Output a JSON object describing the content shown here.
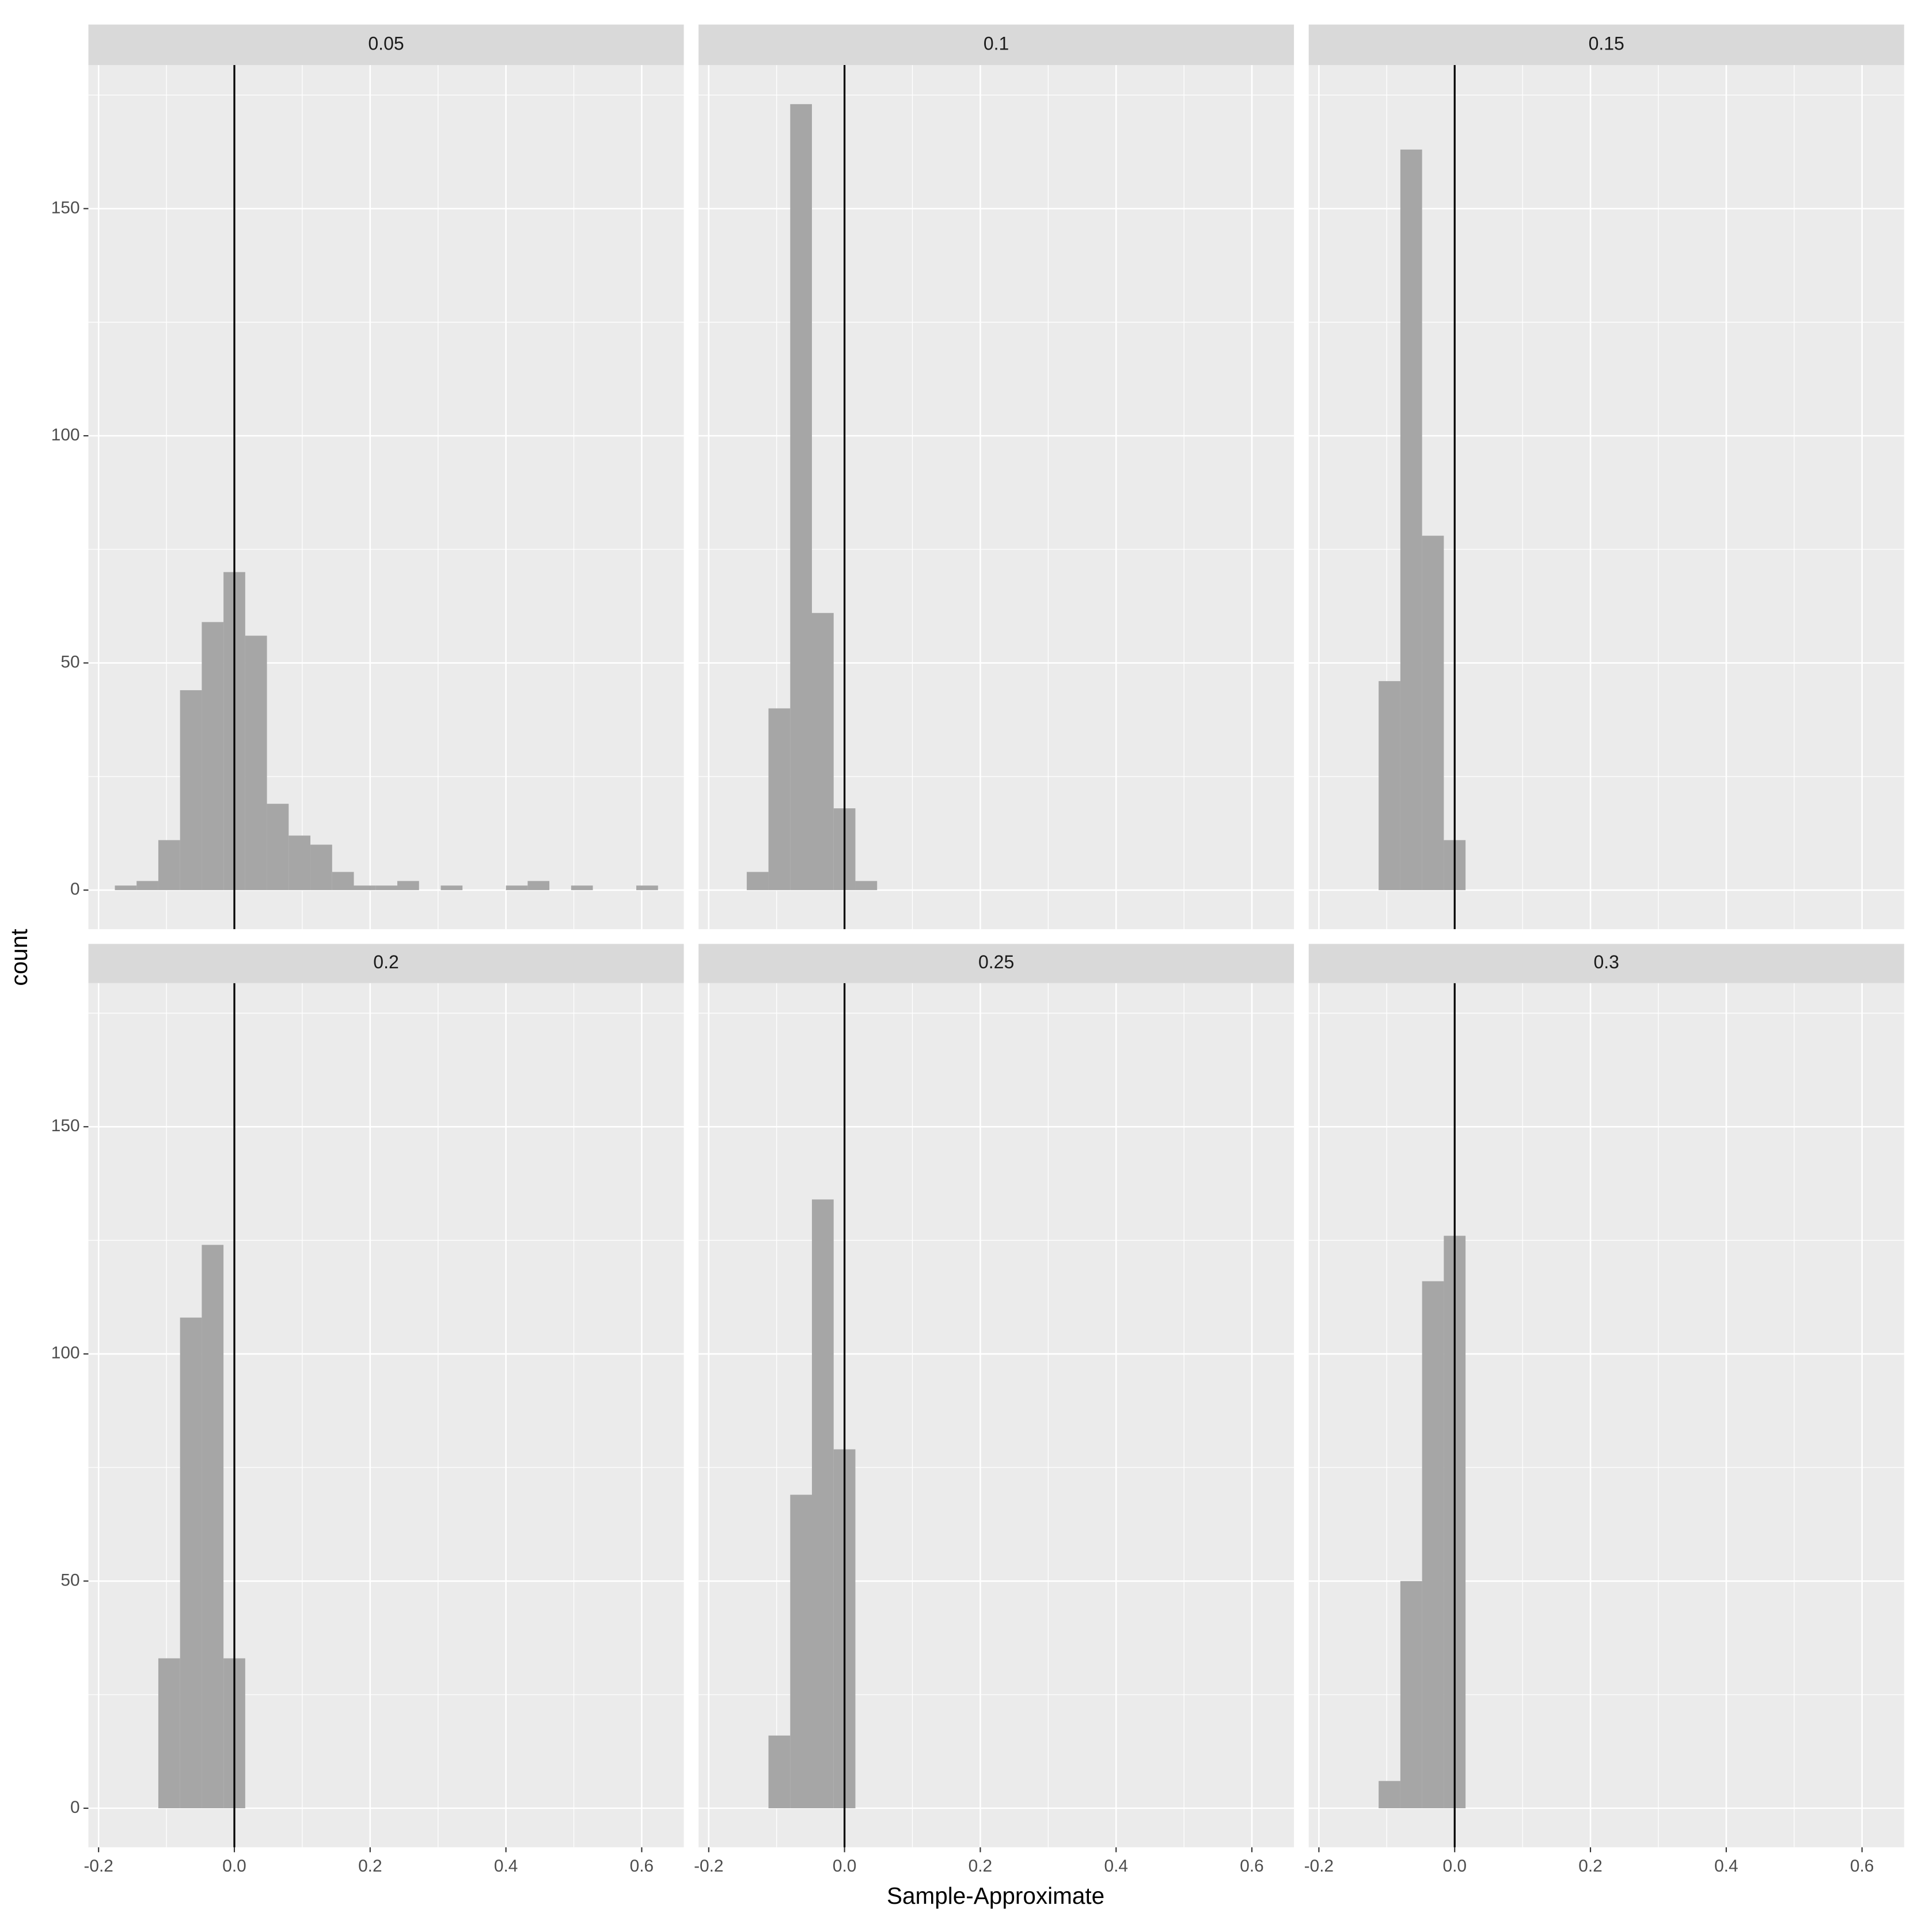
{
  "chart_data": {
    "type": "histogram",
    "xlabel": "Sample-Approximate",
    "ylabel": "count",
    "color": "#a6a6a6",
    "reference_line": 0,
    "xlim": [
      -0.215,
      0.662
    ],
    "xticks": [
      -0.2,
      {
        "value": 0,
        "label": "0.0"
      },
      0.2,
      0.4,
      0.6
    ],
    "minor_xticks": [
      -0.1,
      0.1,
      0.3,
      0.5
    ],
    "ylim": [
      -8.6,
      181.6
    ],
    "yticks": [
      0,
      50,
      100,
      150
    ],
    "minor_yticks": [
      25,
      75,
      125,
      175
    ],
    "facets": [
      {
        "title": "0.05",
        "bins": [
          -0.176,
          -0.144,
          -0.112,
          -0.08,
          -0.048,
          -0.016,
          0.016,
          0.048,
          0.08,
          0.112,
          0.144,
          0.176,
          0.208,
          0.24,
          0.272,
          0.304,
          0.336,
          0.368,
          0.4,
          0.432,
          0.464,
          0.496,
          0.528,
          0.56,
          0.592,
          0.624
        ],
        "counts": [
          1,
          2,
          11,
          44,
          59,
          70,
          56,
          19,
          12,
          10,
          4,
          1,
          1,
          2,
          0,
          1,
          0,
          0,
          1,
          2,
          0,
          1,
          0,
          0,
          1
        ]
      },
      {
        "title": "0.1",
        "bins": [
          -0.144,
          -0.112,
          -0.08,
          -0.048,
          -0.016,
          0.016,
          0.048
        ],
        "counts": [
          4,
          40,
          173,
          61,
          18,
          2
        ]
      },
      {
        "title": "0.15",
        "bins": [
          -0.112,
          -0.08,
          -0.048,
          -0.016,
          0.016
        ],
        "counts": [
          46,
          163,
          78,
          11
        ]
      },
      {
        "title": "0.2",
        "bins": [
          -0.112,
          -0.08,
          -0.048,
          -0.016,
          0.016
        ],
        "counts": [
          33,
          108,
          124,
          33
        ]
      },
      {
        "title": "0.25",
        "bins": [
          -0.112,
          -0.08,
          -0.048,
          -0.016,
          0.016
        ],
        "counts": [
          16,
          69,
          134,
          79
        ]
      },
      {
        "title": "0.3",
        "bins": [
          -0.112,
          -0.08,
          -0.048,
          -0.016,
          0.016
        ],
        "counts": [
          6,
          50,
          116,
          126
        ]
      }
    ]
  }
}
